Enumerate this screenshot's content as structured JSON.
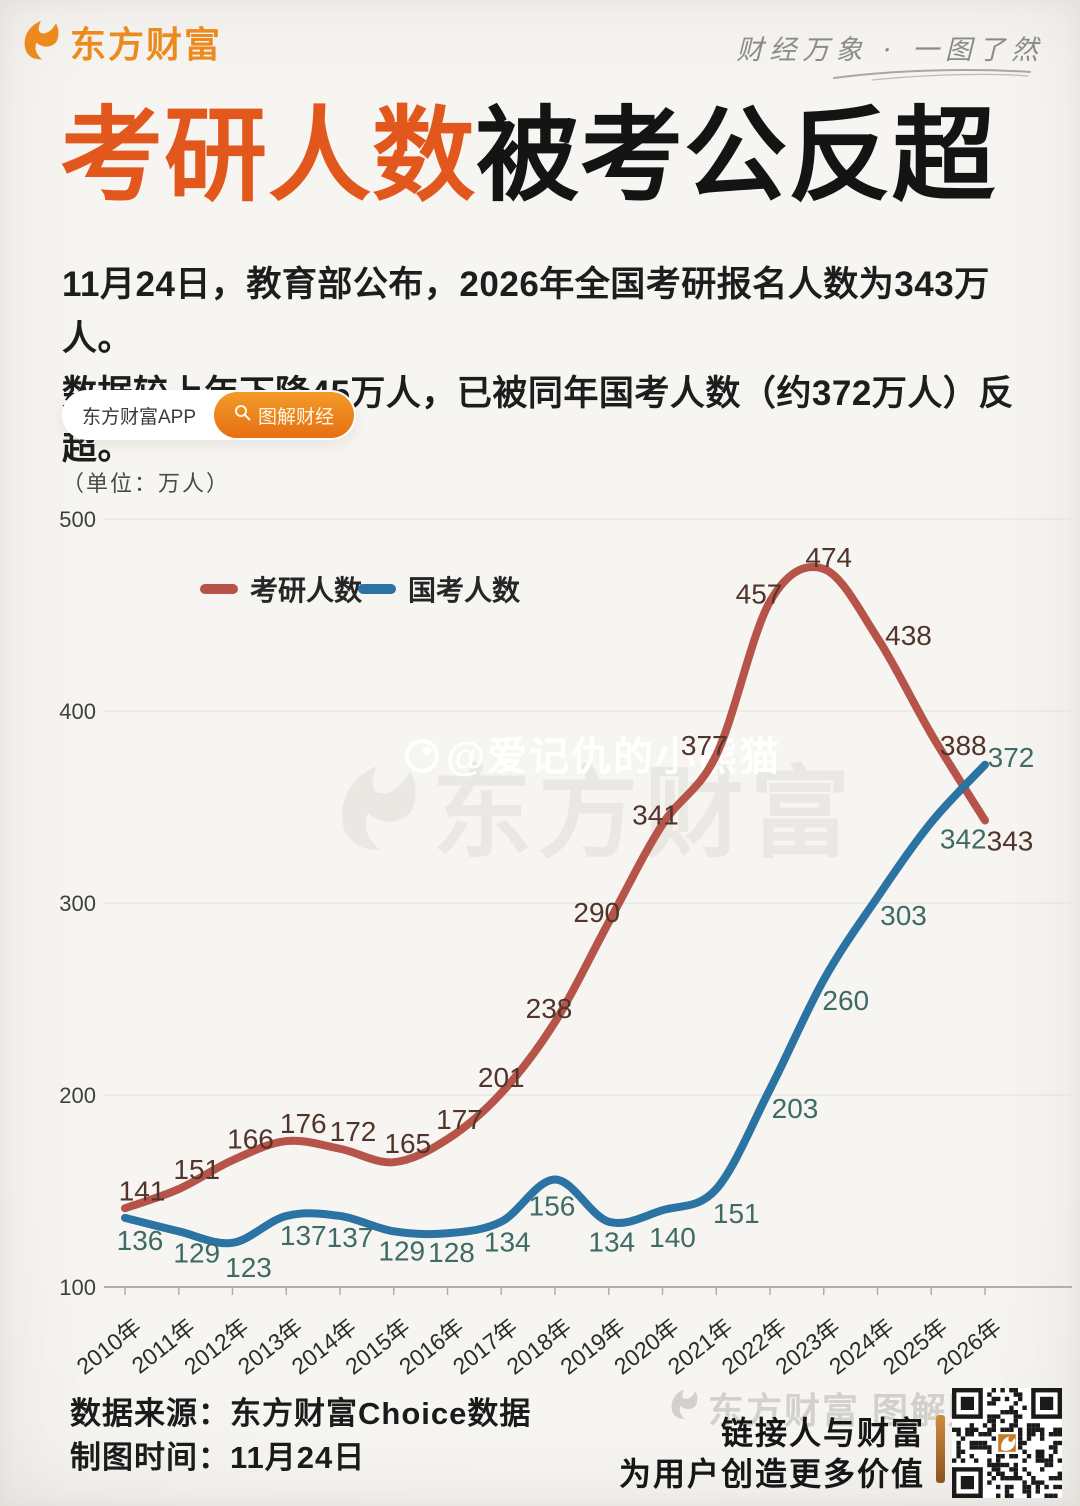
{
  "header": {
    "brand": "东方财富",
    "tagline": "财经万象 · 一图了然"
  },
  "title": {
    "highlight": "考研人数",
    "rest": "被考公反超"
  },
  "intro": {
    "line1": "11月24日，教育部公布，2026年全国考研报名人数为343万人。",
    "line2": "数据较上年下降45万人，已被同年国考人数（约372万人）反超。"
  },
  "badges": {
    "app_label": "东方财富APP",
    "tag_label": "图解财经"
  },
  "watermarks": {
    "center_brand": "东方财富",
    "social_handle": "@爱记仇的小熊猫",
    "footer_brand": "东方财富 图解财经"
  },
  "footer": {
    "source_line": "数据来源：东方财富Choice数据",
    "date_line": "制图时间：11月24日",
    "slogan_line1": "链接人与财富",
    "slogan_line2": "为用户创造更多价值"
  },
  "colors": {
    "brand_orange": "#ec8a1e",
    "title_orange": "#e2571c",
    "red_line": "#b6544a",
    "blue_line": "#2a73a2",
    "red_label": "#51342b",
    "blue_label": "#3f6b66",
    "grid": "#e9e6e1",
    "axis": "#b2afaa"
  },
  "chart_data": {
    "type": "line",
    "unit_label": "（单位：万人）",
    "categories": [
      "2010年",
      "2011年",
      "2012年",
      "2013年",
      "2014年",
      "2015年",
      "2016年",
      "2017年",
      "2018年",
      "2019年",
      "2020年",
      "2021年",
      "2022年",
      "2023年",
      "2024年",
      "2025年",
      "2026年"
    ],
    "series": [
      {
        "name": "考研人数",
        "color": "#b6544a",
        "label_color": "#51342b",
        "values": [
          141,
          151,
          166,
          176,
          172,
          165,
          177,
          201,
          238,
          290,
          341,
          377,
          457,
          474,
          438,
          388,
          343
        ],
        "label_dx": [
          17,
          18,
          18,
          17,
          13,
          14,
          12,
          0,
          -6,
          -12,
          -7,
          -12,
          -11,
          5,
          31,
          32,
          25
        ],
        "label_dy": [
          -8,
          -10,
          -12,
          -8,
          -8,
          -9,
          -10,
          -6,
          -4,
          0,
          0,
          0,
          2,
          -2,
          7,
          21,
          30
        ]
      },
      {
        "name": "国考人数",
        "color": "#2a73a2",
        "label_color": "#3f6b66",
        "values": [
          136,
          129,
          123,
          137,
          137,
          129,
          128,
          134,
          156,
          134,
          140,
          151,
          203,
          260,
          303,
          342,
          372
        ],
        "label_dx": [
          15,
          18,
          16,
          17,
          10,
          8,
          4,
          6,
          -3,
          3,
          10,
          20,
          25,
          22,
          26,
          32,
          26
        ],
        "label_dy": [
          32,
          31,
          34,
          29,
          31,
          29,
          29,
          30,
          36,
          30,
          37,
          34,
          29,
          30,
          28,
          26,
          2
        ]
      }
    ],
    "ylim": [
      100,
      500
    ],
    "yticks": [
      100,
      200,
      300,
      400,
      500
    ],
    "grid": true,
    "legend_position": "top-center",
    "xlabel": "",
    "ylabel": ""
  }
}
